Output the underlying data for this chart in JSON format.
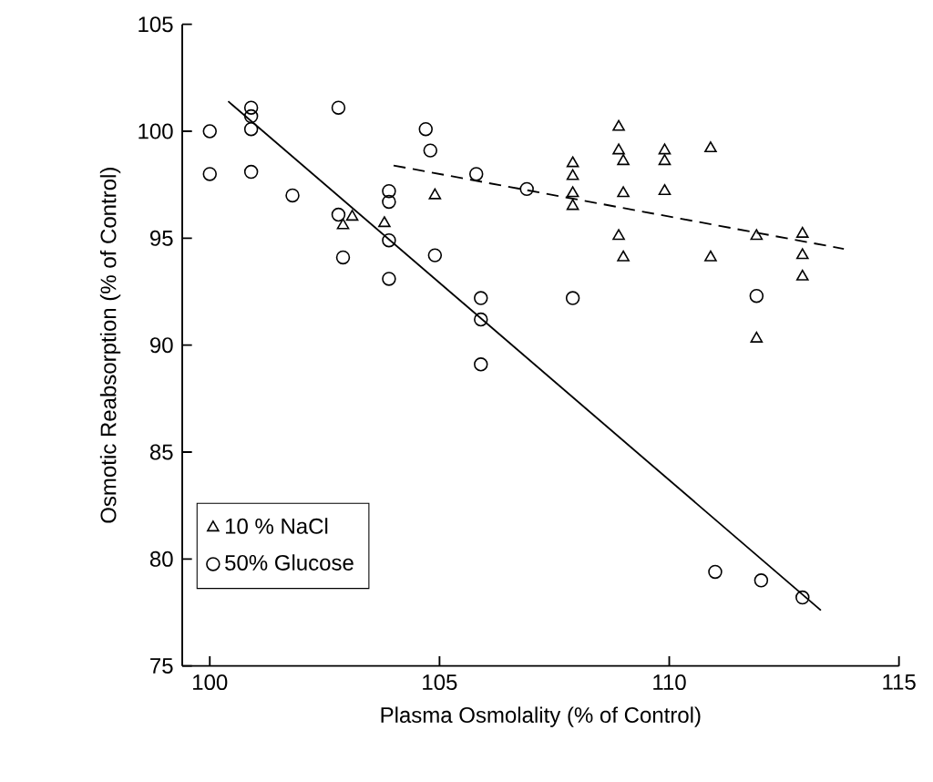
{
  "chart_data": {
    "type": "scatter",
    "xlabel": "Plasma Osmolality (% of Control)",
    "ylabel": "Osmotic Reabsorption (% of Control)",
    "xlim": [
      99.4,
      115
    ],
    "ylim": [
      75,
      105
    ],
    "xticks": [
      100,
      105,
      110,
      115
    ],
    "yticks": [
      75,
      80,
      85,
      90,
      95,
      100,
      105
    ],
    "legend": "bottom left",
    "series": [
      {
        "name": "10 % NaCl",
        "marker": "triangle",
        "color": "#000000",
        "x": [
          103.1,
          102.9,
          103.8,
          104.9,
          108.9,
          108.9,
          109.0,
          109.9,
          109.9,
          110.9,
          107.9,
          107.9,
          107.9,
          107.9,
          109.0,
          109.9,
          108.9,
          109.0,
          110.9,
          111.9,
          112.9,
          112.9,
          112.9,
          111.9
        ],
        "values": [
          96.0,
          95.6,
          95.7,
          97.0,
          100.2,
          99.1,
          98.6,
          99.1,
          98.6,
          99.2,
          98.5,
          97.9,
          97.1,
          96.5,
          97.1,
          97.2,
          95.1,
          94.1,
          94.1,
          95.1,
          95.2,
          94.2,
          93.2,
          90.3
        ]
      },
      {
        "name": "50% Glucose",
        "marker": "circle",
        "color": "#000000",
        "x": [
          100.9,
          100.9,
          100.9,
          100.0,
          100.0,
          100.9,
          102.8,
          101.8,
          102.8,
          102.9,
          103.9,
          103.9,
          103.9,
          103.9,
          104.7,
          104.8,
          104.9,
          105.8,
          106.9,
          105.9,
          105.9,
          105.9,
          107.9,
          111.9,
          111.0,
          112.0,
          112.9
        ],
        "values": [
          101.1,
          100.7,
          100.1,
          100.0,
          98.0,
          98.1,
          101.1,
          97.0,
          96.1,
          94.1,
          97.2,
          96.7,
          94.9,
          93.1,
          100.1,
          99.1,
          94.2,
          98.0,
          97.3,
          92.2,
          91.2,
          89.1,
          92.2,
          92.3,
          79.4,
          79.0,
          78.2
        ]
      },
      {
        "type": "line",
        "marker": "none",
        "line_style": "solid",
        "color": "#000000",
        "x": [
          100.4,
          113.3
        ],
        "values": [
          101.4,
          77.6
        ]
      },
      {
        "type": "line",
        "marker": "none",
        "line_style": "dashed",
        "color": "#000000",
        "x": [
          104.0,
          113.8
        ],
        "values": [
          98.4,
          94.5
        ]
      }
    ]
  }
}
